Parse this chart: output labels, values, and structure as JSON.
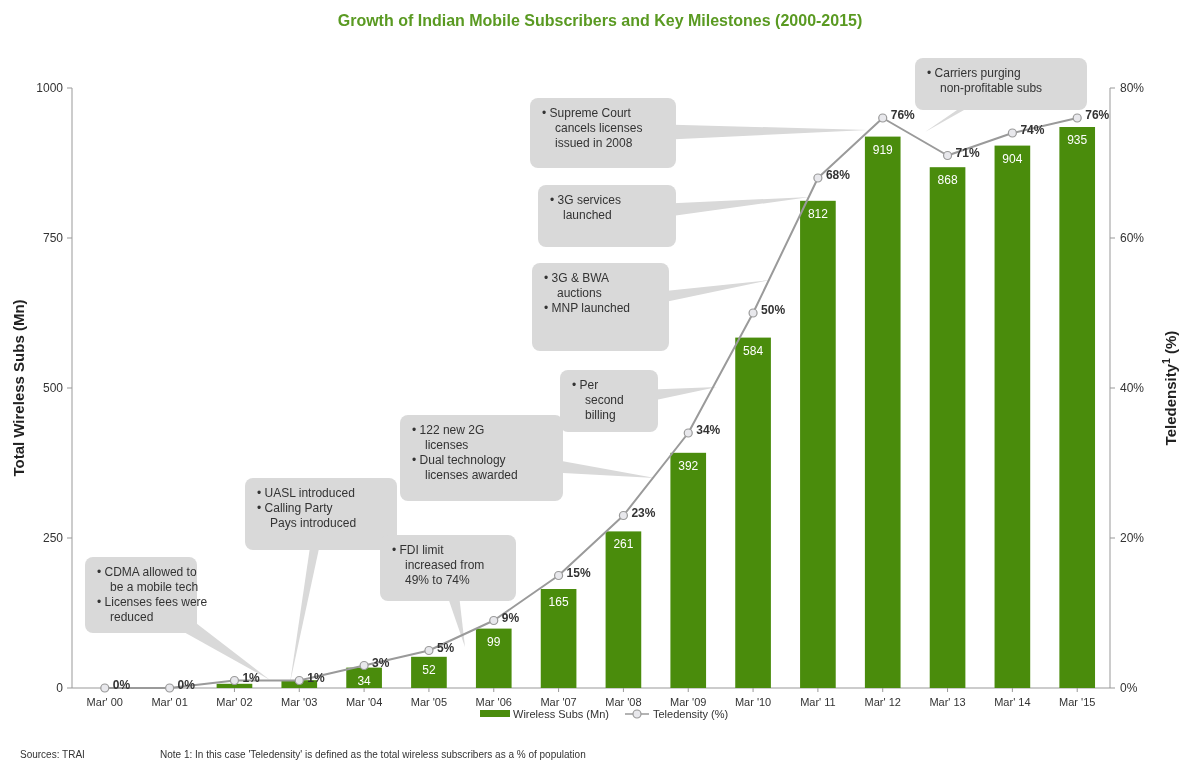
{
  "chart_data": {
    "type": "bar",
    "title": "Growth of Indian Mobile Subscribers and Key Milestones (2000-2015)",
    "categories": [
      "Mar' 00",
      "Mar' 01",
      "Mar' 02",
      "Mar '03",
      "Mar '04",
      "Mar '05",
      "Mar '06",
      "Mar '07",
      "Mar '08",
      "Mar '09",
      "Mar '10",
      "Mar' 11",
      "Mar' 12",
      "Mar' 13",
      "Mar' 14",
      "Mar '15"
    ],
    "series": [
      {
        "name": "Wireless Subs (Mn)",
        "color": "#4a8c0c",
        "values": [
          null,
          null,
          7,
          13,
          34,
          52,
          99,
          165,
          261,
          392,
          584,
          812,
          919,
          868,
          904,
          935
        ],
        "value_labels": [
          null,
          null,
          null,
          null,
          "34",
          "52",
          "99",
          "165",
          "261",
          "392",
          "584",
          "812",
          "919",
          "868",
          "904",
          "935"
        ]
      },
      {
        "name": "Teledensity (%)",
        "type": "line",
        "axis": "y2",
        "color": "#9a9a9a",
        "marker": "circle",
        "values": [
          0,
          0,
          1,
          1,
          3,
          5,
          9,
          15,
          23,
          34,
          50,
          68,
          76,
          71,
          74,
          76
        ],
        "value_labels": [
          "0%",
          "0%",
          "1%",
          "1%",
          "3%",
          "5%",
          "9%",
          "15%",
          "23%",
          "34%",
          "50%",
          "68%",
          "76%",
          "71%",
          "74%",
          "76%"
        ]
      }
    ],
    "ylabel": "Total Wireless Subs (Mn)",
    "y2label": "Teledensity$^{1}$ (%)",
    "ylim": [
      0,
      1000
    ],
    "yticks": [
      0,
      250,
      500,
      750,
      1000
    ],
    "y2lim": [
      0,
      80
    ],
    "y2ticks": [
      {
        "value": 0,
        "label": "0%"
      },
      {
        "value": 20,
        "label": "20%"
      },
      {
        "value": 40,
        "label": "40%"
      },
      {
        "value": 60,
        "label": "60%"
      },
      {
        "value": 80,
        "label": "80%"
      }
    ],
    "legend": "bottom",
    "grid": false,
    "annotations": [
      "• CDMA allowed to\nbe a mobile tech\n• Licenses fees were\nreduced",
      "• UASL introduced\n• Calling Party\nPays introduced",
      "• FDI limit\nincreased from\n49% to 74%",
      "• 122 new 2G\nlicenses\n• Dual technology\nlicenses awarded",
      "• Per\nsecond\nbilling",
      "• 3G & BWA\nauctions\n• MNP launched",
      "• 3G services\nlaunched",
      "• Supreme Court\ncancels licenses\nissued in 2008",
      "• Carriers purging\nnon-profitable subs",
      "Sources: TRAI",
      "Note 1: In this case 'Teledensity' is defined as the total wireless subscribers as a % of population"
    ]
  }
}
